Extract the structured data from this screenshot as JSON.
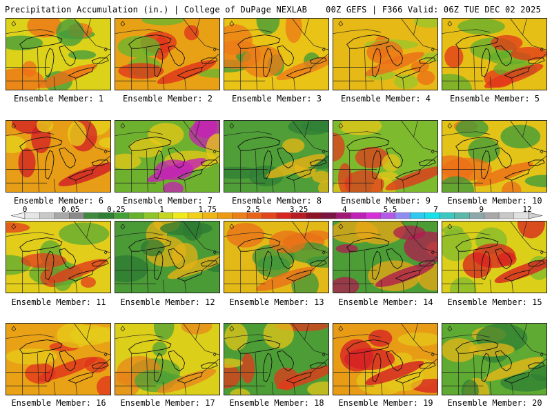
{
  "header": {
    "left": "Precipitation Accumulation (in.) | College of DuPage NEXLAB",
    "right": "00Z GEFS | F366 Valid: 06Z TUE DEC 02 2025"
  },
  "member_prefix": "Ensemble Member: ",
  "members": [
    {
      "label": "Ensemble Member: 1",
      "base": "#dcd21a",
      "accent": "#ef6d17",
      "accent2": "#3d9b3d"
    },
    {
      "label": "Ensemble Member: 2",
      "base": "#e8a015",
      "accent": "#e0311c",
      "accent2": "#66b52e"
    },
    {
      "label": "Ensemble Member: 3",
      "base": "#e9c417",
      "accent": "#ec7a18",
      "accent2": "#3c9a3a"
    },
    {
      "label": "Ensemble Member: 4",
      "base": "#e7b916",
      "accent": "#ec6d18",
      "accent2": "#97c72a"
    },
    {
      "label": "Ensemble Member: 5",
      "base": "#e5bf16",
      "accent": "#e2361b",
      "accent2": "#5fae2e"
    },
    {
      "label": "Ensemble Member: 6",
      "base": "#e79d15",
      "accent": "#d11c26",
      "accent2": "#e6d41a"
    },
    {
      "label": "Ensemble Member: 7",
      "base": "#6eb12f",
      "accent": "#c620b6",
      "accent2": "#e9c817"
    },
    {
      "label": "Ensemble Member: 8",
      "base": "#4f9e37",
      "accent": "#e9b516",
      "accent2": "#2f7e35"
    },
    {
      "label": "Ensemble Member: 9",
      "base": "#7eba2d",
      "accent": "#e03a1c",
      "accent2": "#e7c518"
    },
    {
      "label": "Ensemble Member: 10",
      "base": "#e3c318",
      "accent": "#ec6d18",
      "accent2": "#3a9a3a"
    },
    {
      "label": "Ensemble Member: 11",
      "base": "#e2cd1a",
      "accent": "#e23b1c",
      "accent2": "#5aa933"
    },
    {
      "label": "Ensemble Member: 12",
      "base": "#4a9a36",
      "accent": "#e5b116",
      "accent2": "#2c7a33"
    },
    {
      "label": "Ensemble Member: 13",
      "base": "#e2b917",
      "accent": "#ea6f18",
      "accent2": "#3b963a"
    },
    {
      "label": "Ensemble Member: 14",
      "base": "#4c9d35",
      "accent": "#b01b4f",
      "accent2": "#e9a716"
    },
    {
      "label": "Ensemble Member: 15",
      "base": "#dccf1a",
      "accent": "#d82020",
      "accent2": "#7fba2d"
    },
    {
      "label": "Ensemble Member: 16",
      "base": "#e9a115",
      "accent": "#e0311c",
      "accent2": "#e6cc19"
    },
    {
      "label": "Ensemble Member: 17",
      "base": "#dccf1a",
      "accent": "#e8861a",
      "accent2": "#4fa236"
    },
    {
      "label": "Ensemble Member: 18",
      "base": "#4c9d35",
      "accent": "#e23a1c",
      "accent2": "#e3c51a"
    },
    {
      "label": "Ensemble Member: 19",
      "base": "#e89c15",
      "accent": "#d51d24",
      "accent2": "#e6c819"
    },
    {
      "label": "Ensemble Member: 20",
      "base": "#5eaa33",
      "accent": "#e7b616",
      "accent2": "#2f7f34"
    }
  ],
  "colorbar": {
    "ticks": [
      "0",
      "0.05",
      "0.25",
      "1",
      "1.75",
      "2.5",
      "3.25",
      "4",
      "5.5",
      "7",
      "9",
      "12"
    ],
    "colors": [
      "#e6e6e6",
      "#c8c8c8",
      "#a8a8a8",
      "#8a8a8a",
      "#3f8a3f",
      "#2f7f34",
      "#46a039",
      "#63b12f",
      "#8ec52a",
      "#c4d61f",
      "#f0ea1a",
      "#f2d018",
      "#efb515",
      "#ec9a14",
      "#ea7f17",
      "#e7641a",
      "#e2461c",
      "#d8261e",
      "#b71b23",
      "#8e1424",
      "#7b1440",
      "#a01a75",
      "#c020b5",
      "#d830d8",
      "#b458e8",
      "#8e8cf0",
      "#2fc9f0",
      "#18e0e8",
      "#3cc8c0",
      "#5ab8a8",
      "#8ca8a8",
      "#a8a8a8",
      "#c8c8c8",
      "#e0e0e0"
    ]
  }
}
